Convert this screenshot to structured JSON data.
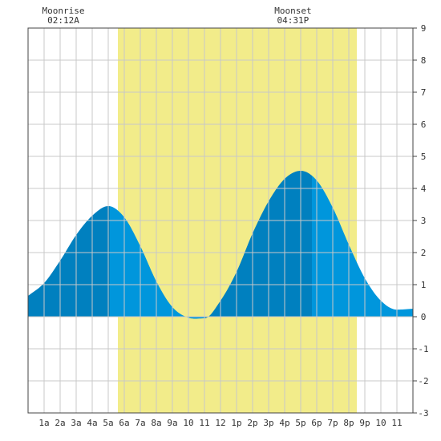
{
  "chart_data": {
    "type": "area",
    "title": "",
    "xlabel": "",
    "ylabel": "",
    "x_hours_range": [
      0,
      24
    ],
    "ylim": [
      -3,
      9
    ],
    "y_ticks": [
      -3,
      -2,
      -1,
      0,
      1,
      2,
      3,
      4,
      5,
      6,
      7,
      8,
      9
    ],
    "x_tick_labels": [
      "1a",
      "2a",
      "3a",
      "4a",
      "5a",
      "6a",
      "7a",
      "8a",
      "9a",
      "10",
      "11",
      "12",
      "1p",
      "2p",
      "3p",
      "4p",
      "5p",
      "6p",
      "7p",
      "8p",
      "9p",
      "10",
      "11"
    ],
    "grid": true,
    "daylight_band": {
      "start_hour": 5.6,
      "end_hour": 20.5,
      "color": "#f2ec8a"
    },
    "moon_events": [
      {
        "label": "Moonrise",
        "time": "02:12A",
        "hour": 2.2
      },
      {
        "label": "Moonset",
        "time": "04:31P",
        "hour": 16.52
      }
    ],
    "series": [
      {
        "values_x_hours": [
          0,
          1,
          2,
          3,
          4,
          5,
          6,
          7,
          8,
          9,
          10,
          11,
          12,
          13,
          14,
          15,
          16,
          17,
          18,
          19,
          20,
          21,
          22,
          23,
          24
        ],
        "values": [
          0.65,
          1.05,
          1.75,
          2.55,
          3.15,
          3.45,
          3.1,
          2.2,
          1.1,
          0.3,
          -0.03,
          -0.05,
          0.5,
          1.4,
          2.6,
          3.6,
          4.3,
          4.55,
          4.25,
          3.4,
          2.25,
          1.2,
          0.5,
          0.22,
          0.25
        ]
      }
    ],
    "tide_extremes": [
      {
        "type": "low",
        "hour": 0.0,
        "value": 0.65
      },
      {
        "type": "high",
        "hour": 5.1,
        "value": 3.45
      },
      {
        "type": "low",
        "hour": 11.0,
        "value": -0.05
      },
      {
        "type": "high",
        "hour": 17.7,
        "value": 4.6
      },
      {
        "type": "low",
        "hour": 23.8,
        "value": 0.2
      }
    ],
    "colors": {
      "fill_dark": "#0080bf",
      "fill_light": "#0096dc",
      "grid": "#c8c8c8",
      "frame": "#444444"
    }
  }
}
